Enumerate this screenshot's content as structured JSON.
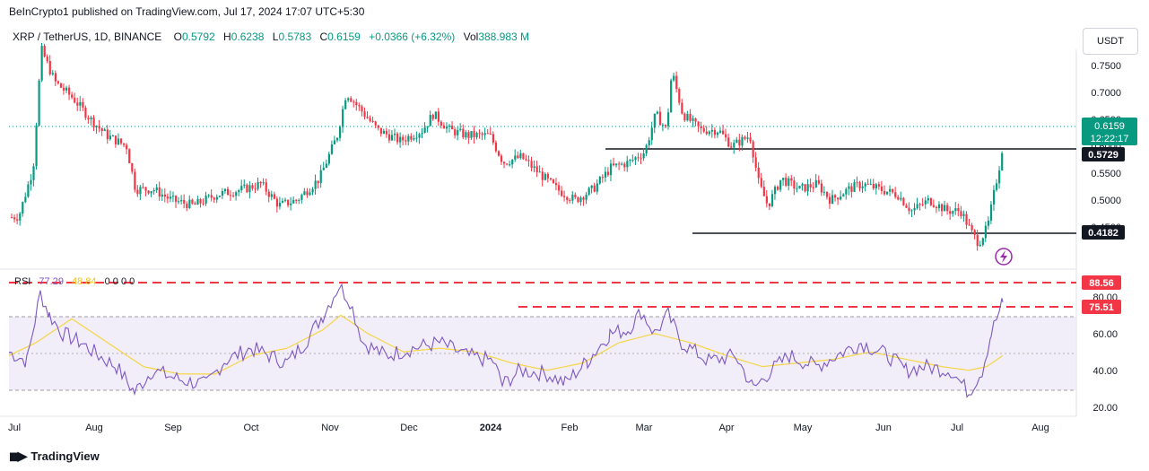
{
  "header": {
    "published": "BeInCrypto1 published on TradingView.com, Jul 17, 2024 17:07 UTC+5:30"
  },
  "legend": {
    "symbol": "XRP / TetherUS, 1D, BINANCE",
    "o_label": "O",
    "o": "0.5792",
    "h_label": "H",
    "h": "0.6238",
    "l_label": "L",
    "l": "0.5783",
    "c_label": "C",
    "c": "0.6159",
    "change": "+0.0366 (+6.32%)",
    "vol_label": "Vol",
    "vol": "388.983 M"
  },
  "currency_button": "USDT",
  "rsi_legend": {
    "name": "RSI",
    "rsi": "77.29",
    "ma": "48.84",
    "zeros": "0 0 0 0"
  },
  "price_badges": {
    "last": "0.6159",
    "countdown": "12:22:17",
    "resistance": "0.5729",
    "support": "0.4182"
  },
  "rsi_badges": {
    "upper": "88.56",
    "lower": "75.51"
  },
  "footer": {
    "brand": "TradingView"
  },
  "colors": {
    "up": "#089981",
    "down": "#f23645",
    "rsi": "#7e57c2",
    "rsi_ma": "#f5d547",
    "band": "#ede7f6"
  },
  "chart_data": [
    {
      "type": "candlestick",
      "title": "XRP / TetherUS, 1D, BINANCE",
      "x_ticks": [
        "Jul",
        "Aug",
        "Sep",
        "Oct",
        "Nov",
        "Dec",
        "2024",
        "Feb",
        "Mar",
        "Apr",
        "May",
        "Jun",
        "Jul",
        "Aug"
      ],
      "y_ticks": [
        "0.4500",
        "0.5000",
        "0.5500",
        "0.6000",
        "0.6500",
        "0.7000",
        "0.7500"
      ],
      "ylim": [
        0.38,
        0.78
      ],
      "last_price": 0.6159,
      "horizontal_levels": [
        0.5729,
        0.4182
      ],
      "approx_closes_by_month": {
        "Jul": 0.47,
        "Aug": 0.61,
        "Sep": 0.5,
        "Oct": 0.52,
        "Nov": 0.62,
        "Dec": 0.62,
        "2024": 0.57,
        "Feb": 0.51,
        "Mar": 0.62,
        "Apr": 0.5,
        "May": 0.51,
        "Jun": 0.48
      }
    },
    {
      "type": "line",
      "title": "RSI",
      "y_ticks": [
        "20.00",
        "40.00",
        "60.00",
        "80.00"
      ],
      "ylim": [
        15,
        95
      ],
      "band": [
        30,
        70
      ],
      "reference_levels": [
        88.56,
        75.51
      ],
      "series": [
        {
          "name": "RSI",
          "last": 77.29
        },
        {
          "name": "MA",
          "last": 48.84
        }
      ]
    }
  ]
}
